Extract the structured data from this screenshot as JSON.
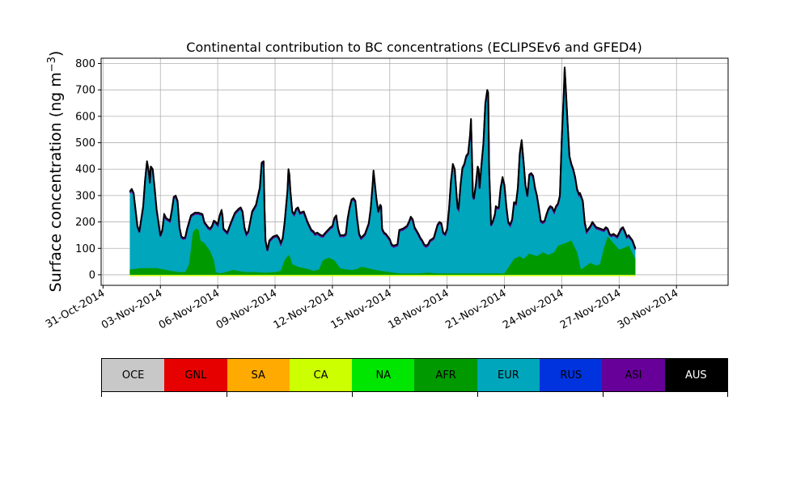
{
  "chart_data": {
    "type": "area",
    "title": "Continental contribution to BC concentrations (ECLIPSEv6 and GFED4)",
    "ylabel": "Surface concentration (ng m",
    "ylabel_sup": "−3",
    "ylabel_close": ")",
    "ylim": [
      -40,
      820
    ],
    "yticks": [
      0,
      100,
      200,
      300,
      400,
      500,
      600,
      700,
      800
    ],
    "x_start_day": -0.1,
    "x_end_day": 32.7,
    "x_axis_origin": "31-Oct-2014 = day 0",
    "xticks": [
      {
        "day": 0,
        "label": "31-Oct-2014"
      },
      {
        "day": 3,
        "label": "03-Nov-2014"
      },
      {
        "day": 6,
        "label": "06-Nov-2014"
      },
      {
        "day": 9,
        "label": "09-Nov-2014"
      },
      {
        "day": 12,
        "label": "12-Nov-2014"
      },
      {
        "day": 15,
        "label": "15-Nov-2014"
      },
      {
        "day": 18,
        "label": "18-Nov-2014"
      },
      {
        "day": 21,
        "label": "21-Nov-2014"
      },
      {
        "day": 24,
        "label": "24-Nov-2014"
      },
      {
        "day": 27,
        "label": "27-Nov-2014"
      },
      {
        "day": 30,
        "label": "30-Nov-2014"
      }
    ],
    "grid": true,
    "total_points": [
      [
        1.4,
        315
      ],
      [
        1.5,
        325
      ],
      [
        1.6,
        310
      ],
      [
        1.8,
        185
      ],
      [
        1.9,
        165
      ],
      [
        2.1,
        260
      ],
      [
        2.2,
        360
      ],
      [
        2.3,
        430
      ],
      [
        2.4,
        390
      ],
      [
        2.45,
        350
      ],
      [
        2.5,
        410
      ],
      [
        2.6,
        400
      ],
      [
        2.7,
        330
      ],
      [
        2.8,
        250
      ],
      [
        2.9,
        200
      ],
      [
        3.0,
        150
      ],
      [
        3.1,
        170
      ],
      [
        3.2,
        230
      ],
      [
        3.3,
        215
      ],
      [
        3.5,
        205
      ],
      [
        3.6,
        245
      ],
      [
        3.7,
        295
      ],
      [
        3.8,
        300
      ],
      [
        3.9,
        280
      ],
      [
        4.0,
        180
      ],
      [
        4.1,
        145
      ],
      [
        4.2,
        140
      ],
      [
        4.3,
        142
      ],
      [
        4.4,
        175
      ],
      [
        4.6,
        225
      ],
      [
        4.8,
        235
      ],
      [
        5.0,
        235
      ],
      [
        5.2,
        230
      ],
      [
        5.3,
        200
      ],
      [
        5.4,
        190
      ],
      [
        5.5,
        180
      ],
      [
        5.6,
        175
      ],
      [
        5.7,
        185
      ],
      [
        5.8,
        205
      ],
      [
        5.9,
        200
      ],
      [
        6.0,
        190
      ],
      [
        6.1,
        225
      ],
      [
        6.2,
        245
      ],
      [
        6.25,
        225
      ],
      [
        6.3,
        175
      ],
      [
        6.5,
        160
      ],
      [
        6.7,
        200
      ],
      [
        6.9,
        235
      ],
      [
        7.1,
        250
      ],
      [
        7.2,
        255
      ],
      [
        7.3,
        240
      ],
      [
        7.4,
        180
      ],
      [
        7.5,
        155
      ],
      [
        7.6,
        165
      ],
      [
        7.8,
        240
      ],
      [
        8.0,
        265
      ],
      [
        8.2,
        330
      ],
      [
        8.3,
        425
      ],
      [
        8.4,
        430
      ],
      [
        8.45,
        250
      ],
      [
        8.5,
        130
      ],
      [
        8.6,
        95
      ],
      [
        8.7,
        130
      ],
      [
        8.9,
        145
      ],
      [
        9.1,
        150
      ],
      [
        9.2,
        140
      ],
      [
        9.3,
        120
      ],
      [
        9.4,
        140
      ],
      [
        9.5,
        200
      ],
      [
        9.65,
        320
      ],
      [
        9.7,
        400
      ],
      [
        9.75,
        380
      ],
      [
        9.8,
        320
      ],
      [
        9.9,
        240
      ],
      [
        10.0,
        230
      ],
      [
        10.1,
        250
      ],
      [
        10.2,
        255
      ],
      [
        10.3,
        235
      ],
      [
        10.5,
        240
      ],
      [
        10.7,
        200
      ],
      [
        10.9,
        170
      ],
      [
        11.0,
        165
      ],
      [
        11.1,
        155
      ],
      [
        11.2,
        160
      ],
      [
        11.4,
        150
      ],
      [
        11.5,
        148
      ],
      [
        11.7,
        165
      ],
      [
        11.9,
        180
      ],
      [
        12.0,
        185
      ],
      [
        12.1,
        215
      ],
      [
        12.2,
        225
      ],
      [
        12.3,
        175
      ],
      [
        12.4,
        150
      ],
      [
        12.6,
        150
      ],
      [
        12.7,
        155
      ],
      [
        12.8,
        215
      ],
      [
        12.9,
        255
      ],
      [
        13.0,
        285
      ],
      [
        13.1,
        290
      ],
      [
        13.2,
        280
      ],
      [
        13.3,
        210
      ],
      [
        13.4,
        155
      ],
      [
        13.5,
        140
      ],
      [
        13.7,
        155
      ],
      [
        13.9,
        195
      ],
      [
        14.0,
        250
      ],
      [
        14.1,
        340
      ],
      [
        14.15,
        395
      ],
      [
        14.2,
        360
      ],
      [
        14.3,
        290
      ],
      [
        14.4,
        240
      ],
      [
        14.5,
        265
      ],
      [
        14.55,
        260
      ],
      [
        14.6,
        175
      ],
      [
        14.7,
        160
      ],
      [
        14.8,
        155
      ],
      [
        14.9,
        145
      ],
      [
        15.0,
        135
      ],
      [
        15.1,
        115
      ],
      [
        15.2,
        110
      ],
      [
        15.4,
        115
      ],
      [
        15.5,
        170
      ],
      [
        15.7,
        175
      ],
      [
        15.9,
        185
      ],
      [
        16.0,
        200
      ],
      [
        16.1,
        220
      ],
      [
        16.2,
        210
      ],
      [
        16.3,
        180
      ],
      [
        16.5,
        155
      ],
      [
        16.6,
        140
      ],
      [
        16.7,
        130
      ],
      [
        16.8,
        115
      ],
      [
        16.9,
        110
      ],
      [
        17.0,
        115
      ],
      [
        17.1,
        130
      ],
      [
        17.3,
        140
      ],
      [
        17.4,
        165
      ],
      [
        17.5,
        190
      ],
      [
        17.6,
        200
      ],
      [
        17.7,
        195
      ],
      [
        17.8,
        160
      ],
      [
        17.9,
        155
      ],
      [
        18.0,
        175
      ],
      [
        18.1,
        250
      ],
      [
        18.2,
        355
      ],
      [
        18.3,
        420
      ],
      [
        18.4,
        400
      ],
      [
        18.5,
        300
      ],
      [
        18.55,
        255
      ],
      [
        18.6,
        250
      ],
      [
        18.7,
        340
      ],
      [
        18.8,
        405
      ],
      [
        18.9,
        420
      ],
      [
        19.0,
        450
      ],
      [
        19.1,
        460
      ],
      [
        19.2,
        530
      ],
      [
        19.25,
        590
      ],
      [
        19.3,
        450
      ],
      [
        19.35,
        300
      ],
      [
        19.4,
        290
      ],
      [
        19.5,
        340
      ],
      [
        19.6,
        410
      ],
      [
        19.65,
        400
      ],
      [
        19.7,
        330
      ],
      [
        19.8,
        420
      ],
      [
        19.9,
        500
      ],
      [
        20.0,
        650
      ],
      [
        20.1,
        700
      ],
      [
        20.15,
        690
      ],
      [
        20.2,
        400
      ],
      [
        20.3,
        190
      ],
      [
        20.4,
        205
      ],
      [
        20.5,
        230
      ],
      [
        20.55,
        260
      ],
      [
        20.6,
        255
      ],
      [
        20.7,
        255
      ],
      [
        20.8,
        330
      ],
      [
        20.9,
        370
      ],
      [
        21.0,
        340
      ],
      [
        21.1,
        260
      ],
      [
        21.2,
        200
      ],
      [
        21.3,
        190
      ],
      [
        21.4,
        210
      ],
      [
        21.5,
        275
      ],
      [
        21.6,
        270
      ],
      [
        21.7,
        330
      ],
      [
        21.8,
        460
      ],
      [
        21.9,
        510
      ],
      [
        22.0,
        430
      ],
      [
        22.1,
        340
      ],
      [
        22.2,
        300
      ],
      [
        22.3,
        380
      ],
      [
        22.4,
        385
      ],
      [
        22.5,
        375
      ],
      [
        22.6,
        330
      ],
      [
        22.7,
        300
      ],
      [
        22.8,
        255
      ],
      [
        22.9,
        205
      ],
      [
        23.0,
        200
      ],
      [
        23.1,
        205
      ],
      [
        23.2,
        230
      ],
      [
        23.3,
        250
      ],
      [
        23.4,
        260
      ],
      [
        23.5,
        255
      ],
      [
        23.6,
        240
      ],
      [
        23.7,
        260
      ],
      [
        23.8,
        270
      ],
      [
        23.9,
        300
      ],
      [
        24.0,
        520
      ],
      [
        24.1,
        680
      ],
      [
        24.15,
        785
      ],
      [
        24.2,
        720
      ],
      [
        24.3,
        580
      ],
      [
        24.4,
        450
      ],
      [
        24.5,
        420
      ],
      [
        24.6,
        400
      ],
      [
        24.7,
        370
      ],
      [
        24.8,
        325
      ],
      [
        24.9,
        305
      ],
      [
        24.95,
        310
      ],
      [
        25.0,
        300
      ],
      [
        25.1,
        280
      ],
      [
        25.2,
        200
      ],
      [
        25.3,
        165
      ],
      [
        25.4,
        175
      ],
      [
        25.5,
        185
      ],
      [
        25.6,
        200
      ],
      [
        25.8,
        180
      ],
      [
        26.0,
        175
      ],
      [
        26.2,
        170
      ],
      [
        26.3,
        180
      ],
      [
        26.4,
        175
      ],
      [
        26.5,
        155
      ],
      [
        26.6,
        150
      ],
      [
        26.7,
        155
      ],
      [
        26.8,
        150
      ],
      [
        26.9,
        145
      ],
      [
        27.0,
        160
      ],
      [
        27.1,
        175
      ],
      [
        27.2,
        180
      ],
      [
        27.3,
        165
      ],
      [
        27.4,
        145
      ],
      [
        27.5,
        150
      ],
      [
        27.6,
        140
      ],
      [
        27.7,
        130
      ],
      [
        27.8,
        110
      ],
      [
        27.85,
        100
      ]
    ],
    "afr_points": [
      [
        1.4,
        20
      ],
      [
        2.0,
        25
      ],
      [
        2.8,
        25
      ],
      [
        3.2,
        20
      ],
      [
        3.5,
        15
      ],
      [
        4.0,
        10
      ],
      [
        4.3,
        10
      ],
      [
        4.5,
        40
      ],
      [
        4.7,
        160
      ],
      [
        4.85,
        175
      ],
      [
        5.0,
        170
      ],
      [
        5.1,
        130
      ],
      [
        5.3,
        120
      ],
      [
        5.6,
        90
      ],
      [
        5.8,
        55
      ],
      [
        5.9,
        10
      ],
      [
        6.1,
        5
      ],
      [
        6.3,
        8
      ],
      [
        6.8,
        18
      ],
      [
        7.0,
        15
      ],
      [
        7.5,
        10
      ],
      [
        8.0,
        10
      ],
      [
        8.5,
        8
      ],
      [
        9.0,
        10
      ],
      [
        9.3,
        15
      ],
      [
        9.5,
        55
      ],
      [
        9.7,
        75
      ],
      [
        9.8,
        65
      ],
      [
        9.9,
        40
      ],
      [
        10.2,
        30
      ],
      [
        10.5,
        25
      ],
      [
        10.8,
        20
      ],
      [
        11.0,
        15
      ],
      [
        11.3,
        20
      ],
      [
        11.5,
        55
      ],
      [
        11.8,
        65
      ],
      [
        12.1,
        55
      ],
      [
        12.4,
        25
      ],
      [
        12.7,
        20
      ],
      [
        13.0,
        18
      ],
      [
        13.3,
        22
      ],
      [
        13.5,
        30
      ],
      [
        13.7,
        28
      ],
      [
        14.0,
        22
      ],
      [
        14.5,
        15
      ],
      [
        15.0,
        10
      ],
      [
        15.5,
        5
      ],
      [
        16.0,
        5
      ],
      [
        16.5,
        5
      ],
      [
        17.0,
        8
      ],
      [
        17.5,
        5
      ],
      [
        18.0,
        5
      ],
      [
        18.5,
        5
      ],
      [
        19.0,
        5
      ],
      [
        19.5,
        5
      ],
      [
        20.0,
        5
      ],
      [
        20.5,
        5
      ],
      [
        21.0,
        5
      ],
      [
        21.5,
        60
      ],
      [
        21.8,
        70
      ],
      [
        22.0,
        60
      ],
      [
        22.3,
        80
      ],
      [
        22.7,
        70
      ],
      [
        23.0,
        85
      ],
      [
        23.3,
        75
      ],
      [
        23.6,
        85
      ],
      [
        23.8,
        110
      ],
      [
        24.2,
        120
      ],
      [
        24.5,
        130
      ],
      [
        24.8,
        85
      ],
      [
        25.0,
        20
      ],
      [
        25.2,
        30
      ],
      [
        25.5,
        45
      ],
      [
        25.8,
        35
      ],
      [
        26.0,
        40
      ],
      [
        26.2,
        100
      ],
      [
        26.4,
        145
      ],
      [
        26.7,
        120
      ],
      [
        27.0,
        95
      ],
      [
        27.2,
        100
      ],
      [
        27.5,
        110
      ],
      [
        27.7,
        80
      ],
      [
        27.85,
        60
      ]
    ],
    "legend": [
      {
        "name": "OCE",
        "color": "#c8c8c8"
      },
      {
        "name": "GNL",
        "color": "#e60000"
      },
      {
        "name": "SA",
        "color": "#ffaa00"
      },
      {
        "name": "CA",
        "color": "#ccff00"
      },
      {
        "name": "NA",
        "color": "#00e600"
      },
      {
        "name": "AFR",
        "color": "#009900"
      },
      {
        "name": "EUR",
        "color": "#00a6bb"
      },
      {
        "name": "RUS",
        "color": "#0033dd"
      },
      {
        "name": "ASI",
        "color": "#660099"
      },
      {
        "name": "AUS",
        "color": "#000000"
      }
    ]
  }
}
